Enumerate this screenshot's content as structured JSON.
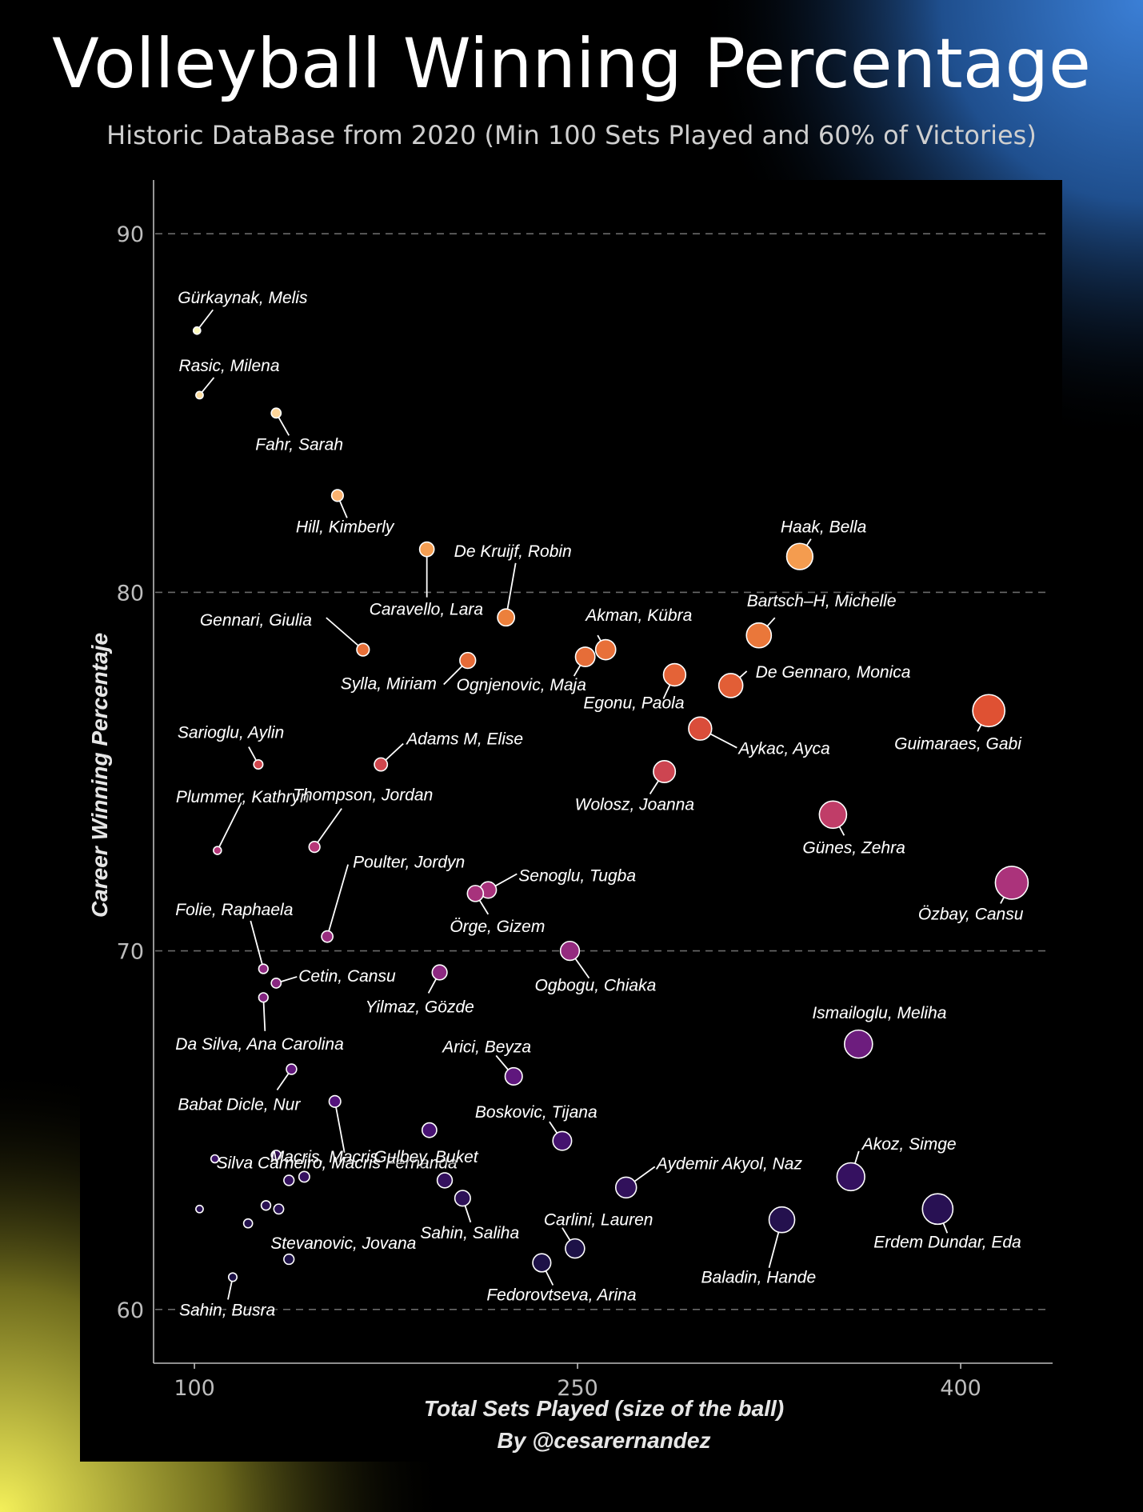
{
  "title": "Volleyball Winning Percentage",
  "subtitle": "Historic DataBase from 2020 (Min 100 Sets Played and 60% of Victories)",
  "credit": "By @cesarernandez",
  "chart_data": {
    "type": "scatter",
    "title": "Volleyball Winning Percentage",
    "xlabel": "Total Sets Played (size of the ball)",
    "ylabel": "Career Winning Percentaje",
    "xlim": [
      84,
      436
    ],
    "ylim": [
      58.5,
      91.5
    ],
    "xticks": [
      100,
      250,
      400
    ],
    "yticks": [
      60,
      70,
      80,
      90
    ],
    "grid": "horizontal dashed",
    "color_scale": [
      "#fcfdbf",
      "#fec287",
      "#f1913f",
      "#de4f33",
      "#b73779",
      "#8c2981",
      "#51127c",
      "#1d1147"
    ],
    "points": [
      {
        "name": "Gürkaynak, Melis",
        "x": 101,
        "y": 87.3,
        "label": true
      },
      {
        "name": "Rasic, Milena",
        "x": 102,
        "y": 85.5,
        "label": true
      },
      {
        "name": "Fahr, Sarah",
        "x": 132,
        "y": 85.0,
        "label": true
      },
      {
        "name": "Hill, Kimberly",
        "x": 156,
        "y": 82.7,
        "label": true
      },
      {
        "name": "Caravello, Lara",
        "x": 191,
        "y": 81.2,
        "label": true
      },
      {
        "name": "Haak, Bella",
        "x": 337,
        "y": 81.0,
        "label": true
      },
      {
        "name": "De Kruijf, Robin",
        "x": 222,
        "y": 79.3,
        "label": true
      },
      {
        "name": "Bartsch–H, Michelle",
        "x": 321,
        "y": 78.8,
        "label": true
      },
      {
        "name": "Gennari, Giulia",
        "x": 166,
        "y": 78.4,
        "label": true
      },
      {
        "name": "Akman, Kübra",
        "x": 261,
        "y": 78.4,
        "label": true
      },
      {
        "name": "Ognjenovic, Maja",
        "x": 253,
        "y": 78.2,
        "label": true
      },
      {
        "name": "Sylla, Miriam",
        "x": 207,
        "y": 78.1,
        "label": true
      },
      {
        "name": "Egonu, Paola",
        "x": 288,
        "y": 77.7,
        "label": true
      },
      {
        "name": "De Gennaro, Monica",
        "x": 310,
        "y": 77.4,
        "label": true
      },
      {
        "name": "Guimaraes, Gabi",
        "x": 411,
        "y": 76.7,
        "label": true
      },
      {
        "name": "Aykac, Ayca",
        "x": 298,
        "y": 76.2,
        "label": true
      },
      {
        "name": "Sarioglu, Aylin",
        "x": 125,
        "y": 75.2,
        "label": true
      },
      {
        "name": "Adams M, Elise",
        "x": 173,
        "y": 75.2,
        "label": true
      },
      {
        "name": "Wolosz, Joanna",
        "x": 284,
        "y": 75.0,
        "label": true
      },
      {
        "name": "Günes, Zehra",
        "x": 350,
        "y": 73.8,
        "label": true
      },
      {
        "name": "Plummer, Kathryn",
        "x": 109,
        "y": 72.8,
        "label": true
      },
      {
        "name": "Thompson, Jordan",
        "x": 147,
        "y": 72.9,
        "label": true
      },
      {
        "name": "Özbay, Cansu",
        "x": 420,
        "y": 71.9,
        "label": true
      },
      {
        "name": "Senoglu, Tugba",
        "x": 215,
        "y": 71.7,
        "label": true
      },
      {
        "name": "Örge, Gizem",
        "x": 210,
        "y": 71.6,
        "label": true
      },
      {
        "name": "Poulter, Jordyn",
        "x": 152,
        "y": 70.4,
        "label": true
      },
      {
        "name": "Ogbogu, Chiaka",
        "x": 247,
        "y": 70.0,
        "label": true
      },
      {
        "name": "Folie, Raphaela",
        "x": 127,
        "y": 69.5,
        "label": true
      },
      {
        "name": "Yilmaz, Gözde",
        "x": 196,
        "y": 69.4,
        "label": true
      },
      {
        "name": "Cetin, Cansu",
        "x": 132,
        "y": 69.1,
        "label": true
      },
      {
        "name": "Da Silva, Ana Carolina",
        "x": 127,
        "y": 68.7,
        "label": true
      },
      {
        "name": "Ismailoglu, Meliha",
        "x": 360,
        "y": 67.4,
        "label": true
      },
      {
        "name": "Babat Dicle, Nur",
        "x": 138,
        "y": 66.7,
        "label": true
      },
      {
        "name": "Arici, Beyza",
        "x": 225,
        "y": 66.5,
        "label": true
      },
      {
        "name": "Macris, Macris",
        "x": 155,
        "y": 65.8,
        "label": true
      },
      {
        "name": "Boskovic, Tijana",
        "x": 244,
        "y": 64.7,
        "label": true
      },
      {
        "name": "Silva Carneiro, Macris Fernanda",
        "x": 108,
        "y": 64.2,
        "label": true
      },
      {
        "name": "Gulbey, Buket",
        "x": 132,
        "y": 64.3,
        "label": true
      },
      {
        "name": "Akoz, Simge",
        "x": 357,
        "y": 63.7,
        "label": true
      },
      {
        "name": "Aydemir Akyol, Naz",
        "x": 269,
        "y": 63.4,
        "label": true
      },
      {
        "name": "Sahin, Saliha",
        "x": 205,
        "y": 63.1,
        "label": true
      },
      {
        "name": "Erdem Dundar, Eda",
        "x": 391,
        "y": 62.8,
        "label": true
      },
      {
        "name": "Baladin, Hande",
        "x": 330,
        "y": 62.5,
        "label": true
      },
      {
        "name": "Carlini, Lauren",
        "x": 249,
        "y": 61.7,
        "label": true
      },
      {
        "name": "Stevanovic, Jovana",
        "x": 137,
        "y": 61.4,
        "label": true
      },
      {
        "name": "Fedorovtseva, Arina",
        "x": 236,
        "y": 61.3,
        "label": true
      },
      {
        "name": "Sahin, Busra",
        "x": 115,
        "y": 60.9,
        "label": true
      },
      {
        "name": "",
        "x": 192,
        "y": 65.0,
        "label": false
      },
      {
        "name": "",
        "x": 198,
        "y": 63.6,
        "label": false
      },
      {
        "name": "",
        "x": 137,
        "y": 63.6,
        "label": false
      },
      {
        "name": "",
        "x": 143,
        "y": 63.7,
        "label": false
      },
      {
        "name": "",
        "x": 102,
        "y": 62.8,
        "label": false
      },
      {
        "name": "",
        "x": 128,
        "y": 62.9,
        "label": false
      },
      {
        "name": "",
        "x": 133,
        "y": 62.8,
        "label": false
      },
      {
        "name": "",
        "x": 121,
        "y": 62.4,
        "label": false
      }
    ]
  }
}
